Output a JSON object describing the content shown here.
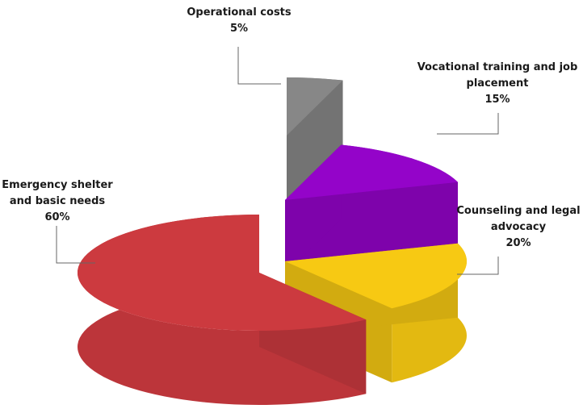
{
  "chart_data": {
    "type": "pie",
    "title": "",
    "slices": [
      {
        "label_lines": [
          "Emergency shelter",
          "and basic needs"
        ],
        "value": 60,
        "value_label": "60%",
        "color": "#cc3a3f"
      },
      {
        "label_lines": [
          "Counseling and legal",
          "advocacy"
        ],
        "value": 20,
        "value_label": "20%",
        "color": "#f7c913"
      },
      {
        "label_lines": [
          "Vocational training and job",
          "placement"
        ],
        "value": 15,
        "value_label": "15%",
        "color": "#9404c9"
      },
      {
        "label_lines": [
          "Operational costs"
        ],
        "value": 5,
        "value_label": "5%",
        "color": "#878787"
      }
    ],
    "style": "3D exploded pie, tilted perspective",
    "legend": "none"
  }
}
